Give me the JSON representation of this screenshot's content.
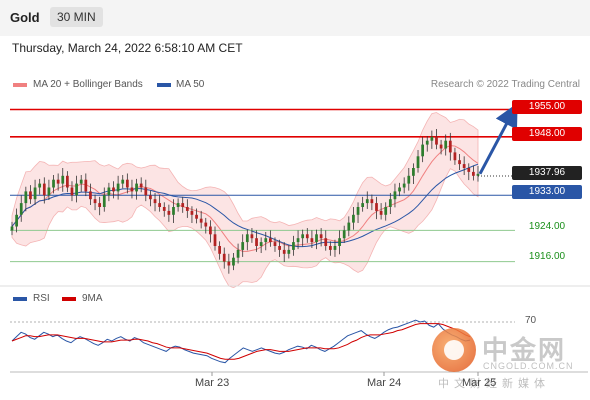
{
  "header": {
    "instrument": "Gold",
    "timeframe": "30 MIN"
  },
  "datetime": "Thursday, March 24, 2022 6:58:10 AM CET",
  "legend": {
    "bb_label": "MA 20 + Bollinger Bands",
    "ma50_label": "MA 50",
    "rsi_label": "RSI",
    "ma9_label": "9MA"
  },
  "copyright": "Research © 2022 Trading Central",
  "levels": [
    {
      "value": "1955.00",
      "style": "red"
    },
    {
      "value": "1948.00",
      "style": "red"
    },
    {
      "value": "1937.96",
      "style": "dark"
    },
    {
      "value": "1933.00",
      "style": "blue"
    },
    {
      "value": "1924.00",
      "style": "green"
    },
    {
      "value": "1916.00",
      "style": "green"
    }
  ],
  "rsi_level_label": "70",
  "watermark": {
    "title": "中金网",
    "url": "CNGOLD.COM.CN",
    "sub": "中文财经新媒体"
  },
  "colors": {
    "resistance": "#e00000",
    "support": "#1a8f1a",
    "pivot": "#2a56a6",
    "up_candle": "#2e7d2e",
    "down_candle": "#b22222",
    "bollinger": "#f08080",
    "ma50": "#2a56a6",
    "arrow": "#2a56a6"
  },
  "chart_data": {
    "type": "candlestick",
    "x_tick_labels": [
      "Mar 23",
      "Mar 24",
      "Mar 25"
    ],
    "price_range": [
      1910,
      1960
    ],
    "horizontal_levels": [
      1955,
      1948,
      1933,
      1924,
      1916
    ],
    "last_price": 1937.96,
    "forecast_arrow": {
      "from_price": 1938.5,
      "to_price": 1955.5
    },
    "price_path": [
      1925,
      1928,
      1931,
      1934,
      1932,
      1935,
      1936,
      1933,
      1935,
      1937,
      1936,
      1938,
      1935,
      1933,
      1936,
      1937,
      1934,
      1932,
      1931,
      1930,
      1933,
      1935,
      1934,
      1936,
      1937,
      1935,
      1934,
      1936,
      1935,
      1933,
      1932,
      1931,
      1930,
      1929,
      1928,
      1930,
      1931,
      1930,
      1929,
      1928,
      1927,
      1926,
      1925,
      1923,
      1920,
      1918,
      1916,
      1915,
      1917,
      1919,
      1921,
      1923,
      1922,
      1920,
      1921,
      1922,
      1921,
      1920,
      1919,
      1918,
      1919,
      1921,
      1922,
      1923,
      1922,
      1921,
      1923,
      1922,
      1920,
      1919,
      1920,
      1922,
      1924,
      1926,
      1928,
      1930,
      1931,
      1932,
      1931,
      1929,
      1928,
      1930,
      1932,
      1934,
      1935,
      1936,
      1938,
      1940,
      1943,
      1946,
      1947,
      1948,
      1946,
      1945,
      1947,
      1944,
      1942,
      1941,
      1940,
      1939,
      1938,
      1938.5
    ],
    "rsi_values": [
      50,
      55,
      60,
      58,
      54,
      52,
      56,
      60,
      58,
      55,
      57,
      53,
      50,
      48,
      52,
      55,
      53,
      50,
      47,
      45,
      48,
      52,
      50,
      53,
      55,
      52,
      50,
      54,
      52,
      48,
      46,
      44,
      42,
      40,
      38,
      42,
      44,
      43,
      40,
      38,
      36,
      35,
      34,
      33,
      30,
      28,
      26,
      25,
      30,
      34,
      38,
      42,
      40,
      38,
      40,
      42,
      40,
      38,
      36,
      35,
      37,
      40,
      42,
      44,
      43,
      41,
      45,
      43,
      40,
      38,
      41,
      44,
      48,
      52,
      56,
      58,
      60,
      62,
      58,
      55,
      53,
      56,
      60,
      63,
      65,
      66,
      68,
      70,
      72,
      74,
      72,
      73,
      68,
      66,
      70,
      64,
      60,
      57,
      55,
      52,
      50,
      51
    ],
    "rsi_ma9_values": [
      50,
      52,
      54,
      56,
      56,
      55,
      55,
      56,
      57,
      57,
      57,
      56,
      55,
      54,
      53,
      53,
      53,
      52,
      51,
      50,
      49,
      49,
      49,
      50,
      51,
      51,
      51,
      52,
      52,
      51,
      50,
      48,
      47,
      45,
      43,
      42,
      42,
      42,
      41,
      40,
      39,
      38,
      37,
      36,
      34,
      32,
      30,
      29,
      29,
      29,
      30,
      32,
      34,
      36,
      38,
      39,
      40,
      40,
      39,
      38,
      38,
      38,
      39,
      40,
      41,
      42,
      42,
      42,
      42,
      41,
      41,
      41,
      42,
      44,
      46,
      49,
      51,
      54,
      56,
      57,
      57,
      57,
      58,
      59,
      60,
      62,
      63,
      65,
      67,
      69,
      70,
      70,
      70,
      70,
      70,
      69,
      67,
      65,
      63,
      60,
      57,
      55
    ]
  }
}
